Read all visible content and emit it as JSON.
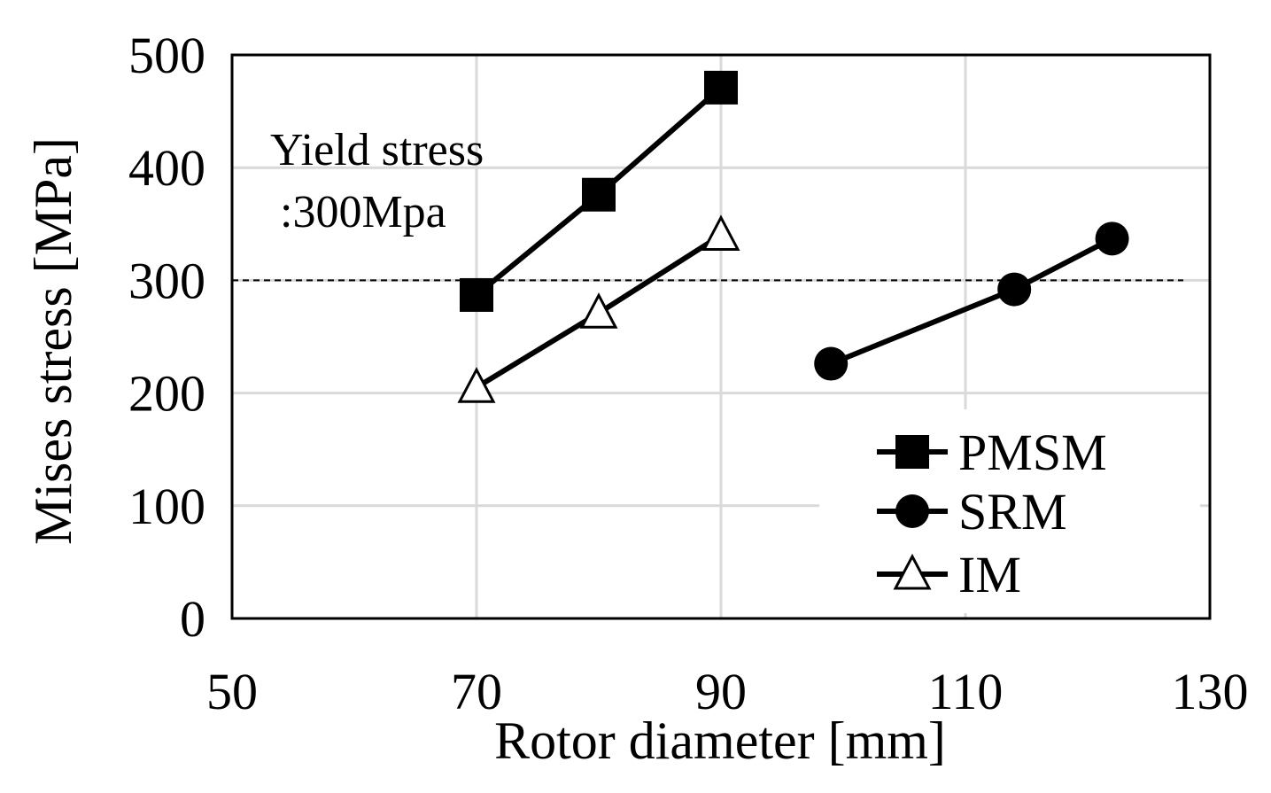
{
  "chart_data": {
    "type": "line",
    "title": "",
    "xlabel": "Rotor diameter [mm]",
    "ylabel": "Mises stress [MPa]",
    "xlim": [
      50,
      130
    ],
    "ylim": [
      0,
      500
    ],
    "xticks": [
      "50",
      "70",
      "90",
      "110",
      "130"
    ],
    "yticks": [
      "0",
      "100",
      "200",
      "300",
      "400",
      "500"
    ],
    "xtick_values": [
      50,
      70,
      90,
      110,
      130
    ],
    "ytick_values": [
      0,
      100,
      200,
      300,
      400,
      500
    ],
    "grid": true,
    "legend_position": "bottom-right",
    "series": [
      {
        "name": "PMSM",
        "marker": "filled-square",
        "x": [
          70,
          80,
          90
        ],
        "y": [
          287,
          376,
          471
        ]
      },
      {
        "name": "SRM",
        "marker": "filled-circle",
        "x": [
          99,
          114,
          122
        ],
        "y": [
          226,
          292,
          337
        ]
      },
      {
        "name": "IM",
        "marker": "open-triangle",
        "x": [
          70,
          80,
          90
        ],
        "y": [
          205,
          271,
          340
        ]
      }
    ],
    "reference_line": {
      "value": 300,
      "style": "dashed"
    },
    "annotation": {
      "line1": "Yield stress",
      "line2": ":300Mpa"
    },
    "colors": {
      "line": "#000000",
      "grid": "#d9d9d9",
      "background": "#ffffff"
    }
  }
}
